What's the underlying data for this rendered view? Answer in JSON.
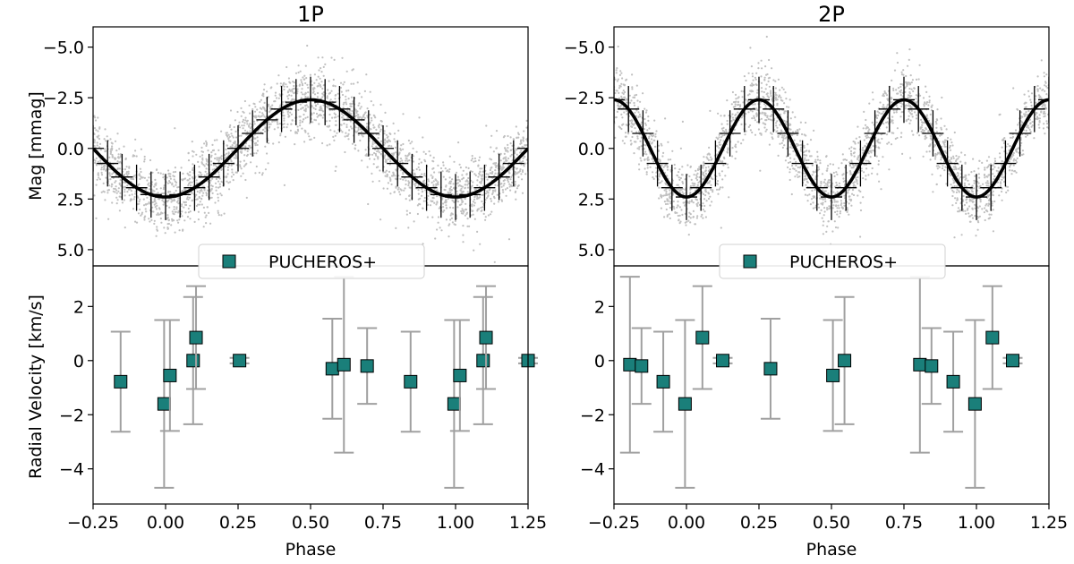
{
  "chart_data": [
    {
      "type": "scatter",
      "panel": "1P",
      "title": "1P",
      "top": {
        "ylabel": "Mag [mmag]",
        "ylim": [
          5.8,
          -6.0
        ],
        "yticks": [
          -5.0,
          -2.5,
          0.0,
          2.5,
          5.0
        ],
        "ytick_labels": [
          "−5.0",
          "−2.5",
          "0.0",
          "2.5",
          "5.0"
        ],
        "model": {
          "amplitude_mmag": 2.4,
          "cycles_per_phase": 1,
          "peak_phase": 0.5,
          "line_color": "#000000"
        },
        "scatter_color": "#c0c0c0",
        "scatter_half_width_mmag": 1.4,
        "binned_error_mmag": 0.6,
        "binned_points": [
          -0.25,
          -0.2,
          -0.15,
          -0.1,
          -0.05,
          0.0,
          0.05,
          0.1,
          0.15,
          0.2,
          0.25,
          0.3,
          0.35,
          0.4,
          0.45,
          0.5,
          0.55,
          0.6,
          0.65,
          0.7,
          0.75,
          0.8,
          0.85,
          0.9,
          0.95,
          1.0,
          1.05,
          1.1,
          1.15,
          1.2,
          1.25
        ]
      },
      "bottom": {
        "ylabel": "Radial Velocity [km/s]",
        "ylim": [
          -5.3,
          3.5
        ],
        "yticks": [
          -4,
          -2,
          0,
          2
        ],
        "ytick_labels": [
          "−4",
          "−2",
          "0",
          "2"
        ],
        "legend": "PUCHEROS+",
        "marker_color": "#1a7f7a",
        "errorbar_color": "#a0a0a0",
        "points": [
          {
            "x": -0.155,
            "y": -0.78,
            "err": 1.85
          },
          {
            "x": -0.005,
            "y": -1.6,
            "err": 3.1
          },
          {
            "x": 0.015,
            "y": -0.55,
            "err": 2.05
          },
          {
            "x": 0.095,
            "y": 0.0,
            "err": 2.35
          },
          {
            "x": 0.105,
            "y": 0.85,
            "err": 1.9
          },
          {
            "x": 0.255,
            "y": 0.0,
            "err": 0.1
          },
          {
            "x": 0.575,
            "y": -0.3,
            "err": 1.85
          },
          {
            "x": 0.615,
            "y": -0.15,
            "err": 3.25
          },
          {
            "x": 0.695,
            "y": -0.2,
            "err": 1.4
          },
          {
            "x": 0.845,
            "y": -0.78,
            "err": 1.85
          },
          {
            "x": 0.995,
            "y": -1.6,
            "err": 3.1
          },
          {
            "x": 1.015,
            "y": -0.55,
            "err": 2.05
          },
          {
            "x": 1.095,
            "y": 0.0,
            "err": 2.35
          },
          {
            "x": 1.105,
            "y": 0.85,
            "err": 1.9
          },
          {
            "x": 1.25,
            "y": 0.0,
            "err": 0.1
          }
        ]
      },
      "xlabel": "Phase",
      "xlim": [
        -0.25,
        1.25
      ],
      "xticks": [
        -0.25,
        0.0,
        0.25,
        0.5,
        0.75,
        1.0,
        1.25
      ],
      "xtick_labels": [
        "−0.25",
        "0.00",
        "0.25",
        "0.50",
        "0.75",
        "1.00",
        "1.25"
      ]
    },
    {
      "type": "scatter",
      "panel": "2P",
      "title": "2P",
      "top": {
        "ylabel": "",
        "ylim": [
          5.8,
          -6.0
        ],
        "yticks": [
          -5.0,
          -2.5,
          0.0,
          2.5,
          5.0
        ],
        "ytick_labels": [
          "−5.0",
          "−2.5",
          "0.0",
          "2.5",
          "5.0"
        ],
        "model": {
          "amplitude_mmag": 2.4,
          "cycles_per_phase": 2,
          "peak_phase": 0.25,
          "line_color": "#000000"
        },
        "scatter_color": "#c0c0c0",
        "scatter_half_width_mmag": 1.4,
        "binned_error_mmag": 0.6,
        "binned_points": [
          -0.25,
          -0.2,
          -0.15,
          -0.1,
          -0.05,
          0.0,
          0.05,
          0.1,
          0.15,
          0.2,
          0.25,
          0.3,
          0.35,
          0.4,
          0.45,
          0.5,
          0.55,
          0.6,
          0.65,
          0.7,
          0.75,
          0.8,
          0.85,
          0.9,
          0.95,
          1.0,
          1.05,
          1.1,
          1.15,
          1.2,
          1.25
        ]
      },
      "bottom": {
        "ylabel": "",
        "ylim": [
          -5.3,
          3.5
        ],
        "yticks": [
          -4,
          -2,
          0,
          2
        ],
        "ytick_labels": [
          "−4",
          "−2",
          "0",
          "2"
        ],
        "legend": "PUCHEROS+",
        "marker_color": "#1a7f7a",
        "errorbar_color": "#a0a0a0",
        "points": [
          {
            "x": -0.195,
            "y": -0.15,
            "err": 3.25
          },
          {
            "x": -0.155,
            "y": -0.2,
            "err": 1.4
          },
          {
            "x": -0.08,
            "y": -0.78,
            "err": 1.85
          },
          {
            "x": -0.005,
            "y": -1.6,
            "err": 3.1
          },
          {
            "x": 0.055,
            "y": 0.85,
            "err": 1.9
          },
          {
            "x": 0.125,
            "y": 0.0,
            "err": 0.1
          },
          {
            "x": 0.29,
            "y": -0.3,
            "err": 1.85
          },
          {
            "x": 0.505,
            "y": -0.55,
            "err": 2.05
          },
          {
            "x": 0.545,
            "y": 0.0,
            "err": 2.35
          },
          {
            "x": 0.805,
            "y": -0.15,
            "err": 3.25
          },
          {
            "x": 0.845,
            "y": -0.2,
            "err": 1.4
          },
          {
            "x": 0.92,
            "y": -0.78,
            "err": 1.85
          },
          {
            "x": 0.995,
            "y": -1.6,
            "err": 3.1
          },
          {
            "x": 1.055,
            "y": 0.85,
            "err": 1.9
          },
          {
            "x": 1.125,
            "y": 0.0,
            "err": 0.1
          }
        ]
      },
      "xlabel": "Phase",
      "xlim": [
        -0.25,
        1.25
      ],
      "xticks": [
        -0.25,
        0.0,
        0.25,
        0.5,
        0.75,
        1.0,
        1.25
      ],
      "xtick_labels": [
        "−0.25",
        "0.00",
        "0.25",
        "0.50",
        "0.75",
        "1.00",
        "1.25"
      ]
    }
  ]
}
